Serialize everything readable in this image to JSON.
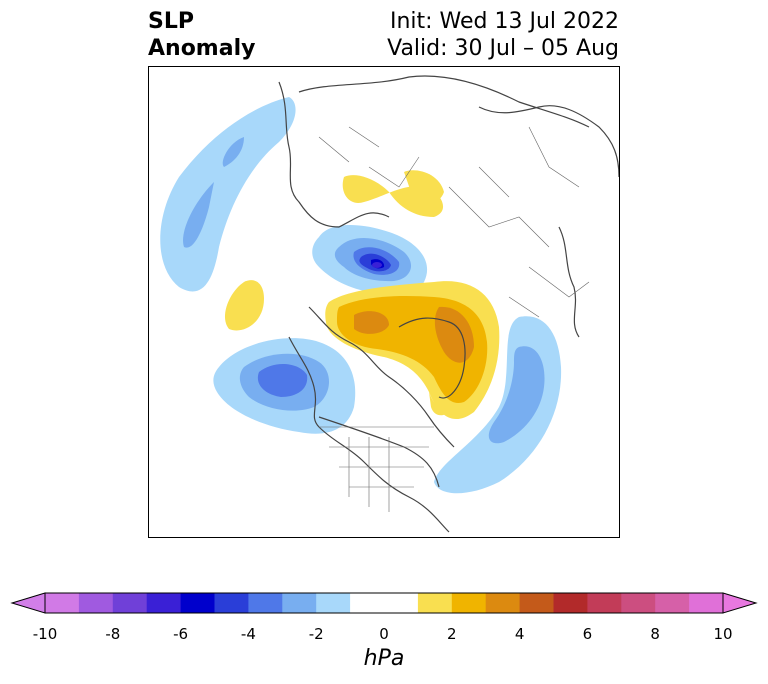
{
  "title": {
    "left_line1": "SLP",
    "left_line2": "Anomaly",
    "right_line1": "Init: Wed 13 Jul 2022",
    "right_line2": "Valid: 30 Jul – 05 Aug"
  },
  "colorbar": {
    "units": "hPa",
    "tick_labels": [
      "-10",
      "-8",
      "-6",
      "-4",
      "-2",
      "0",
      "2",
      "4",
      "6",
      "8",
      "10"
    ],
    "colors": [
      "#d17ae6",
      "#a05ae0",
      "#7040d8",
      "#3a20d6",
      "#0000cc",
      "#2a3ed8",
      "#4f78e8",
      "#78aef0",
      "#a8d8fa",
      "#ffffff",
      "#ffffff",
      "#f9df50",
      "#f0b400",
      "#dc8a10",
      "#c45a1a",
      "#b22a2a",
      "#c23c58",
      "#cc4e80",
      "#d660a8",
      "#e070d8"
    ],
    "extend_low_color": "#d27ee8",
    "extend_high_color": "#e878e0"
  },
  "map": {
    "projection": "north-polar-stereographic",
    "features": [
      {
        "name": "anomaly-pos-greenland",
        "level": 4
      },
      {
        "name": "anomaly-pos-arctic-canada",
        "level": 3
      },
      {
        "name": "anomaly-neg-siberia-arctic",
        "level": -6
      },
      {
        "name": "anomaly-neg-north-pacific",
        "level": -3
      },
      {
        "name": "anomaly-neg-north-atlantic",
        "level": -3
      },
      {
        "name": "anomaly-neg-nw-pacific",
        "level": -2
      },
      {
        "name": "anomaly-pos-siberia",
        "level": 1
      },
      {
        "name": "anomaly-pos-bering",
        "level": 1
      }
    ]
  }
}
